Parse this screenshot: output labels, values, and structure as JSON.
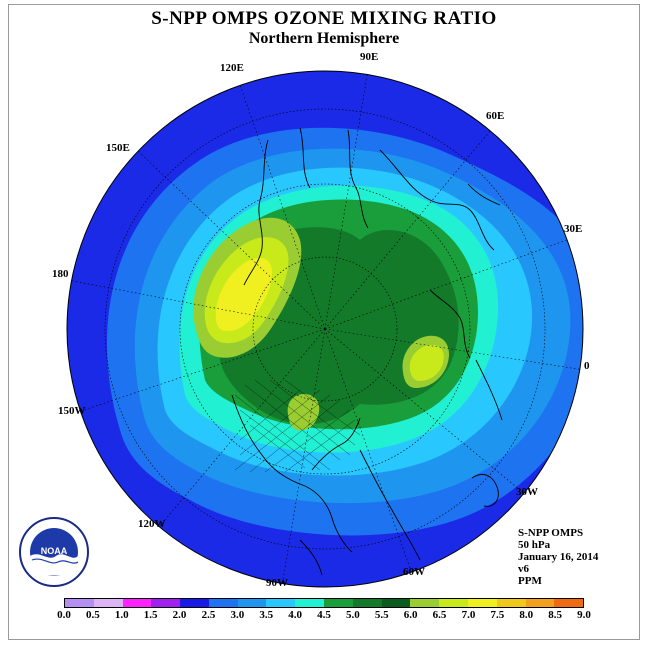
{
  "title": "S-NPP OMPS OZONE MIXING RATIO",
  "subtitle": "Northern Hemisphere",
  "longitude_labels": {
    "e90": "90E",
    "e120": "120E",
    "e60": "60E",
    "e150": "150E",
    "e30": "30E",
    "l180": "180",
    "l0": "0",
    "w150": "150W",
    "w30": "30W",
    "w120": "120W",
    "w60": "60W",
    "w90": "90W"
  },
  "info": {
    "instrument": "S-NPP OMPS",
    "level": "50 hPa",
    "date": "January 16, 2014",
    "version": "v6",
    "units": "PPM"
  },
  "logo": {
    "text": "NOAA",
    "icon": "noaa-logo"
  },
  "colorbar": {
    "ticks": [
      "0.0",
      "0.5",
      "1.0",
      "1.5",
      "2.0",
      "2.5",
      "3.0",
      "3.5",
      "4.0",
      "4.5",
      "5.0",
      "5.5",
      "6.0",
      "6.5",
      "7.0",
      "7.5",
      "8.0",
      "8.5",
      "9.0"
    ],
    "colors": [
      "#b58ef2",
      "#dcb4f5",
      "#ff22ff",
      "#a020f0",
      "#1a1ae6",
      "#1e73f0",
      "#1e96f0",
      "#28c8ff",
      "#22f0d2",
      "#1a9e3c",
      "#137a2a",
      "#0a5c1f",
      "#9acd32",
      "#c8ea1a",
      "#f0f020",
      "#f0c81a",
      "#f0a01a",
      "#f06a10",
      "#ee1010",
      "#8b5a3c"
    ]
  },
  "colors": {
    "ocean_outer": "#1a2ae6",
    "ring_25": "#1e73f0",
    "ring_30": "#1e96f0",
    "ring_35": "#28c8ff",
    "ring_40": "#22f0d2",
    "green_45": "#1a9e3c",
    "green_50": "#137a2a",
    "green_55": "#9acd32",
    "yellow_60": "#c8ea1a",
    "yellow_65": "#f0f020"
  }
}
